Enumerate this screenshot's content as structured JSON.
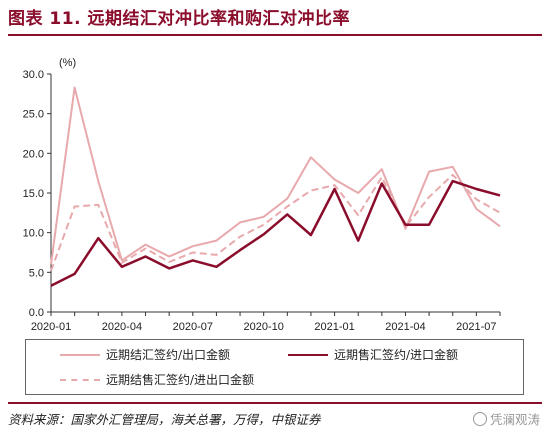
{
  "header": {
    "title": "图表 11. 远期结汇对冲比率和购汇对冲比率"
  },
  "chart_data": {
    "type": "line",
    "unit_label": "(%)",
    "ylim": [
      0,
      30
    ],
    "yticks": [
      "0.0",
      "5.0",
      "10.0",
      "15.0",
      "20.0",
      "25.0",
      "30.0"
    ],
    "xticks": [
      "2020-01",
      "2020-04",
      "2020-07",
      "2020-10",
      "2021-01",
      "2021-04",
      "2021-07"
    ],
    "x": [
      "2020-01",
      "2020-02",
      "2020-03",
      "2020-04",
      "2020-05",
      "2020-06",
      "2020-07",
      "2020-08",
      "2020-09",
      "2020-10",
      "2020-11",
      "2020-12",
      "2021-01",
      "2021-02",
      "2021-03",
      "2021-04",
      "2021-05",
      "2021-06",
      "2021-07",
      "2021-08"
    ],
    "series": [
      {
        "name": "远期结汇签约/出口金额",
        "color": "#e8a9ad",
        "style": "solid",
        "values": [
          6.0,
          28.3,
          16.5,
          6.5,
          8.5,
          7.0,
          8.3,
          9.0,
          11.3,
          12.0,
          14.3,
          19.5,
          16.7,
          15.0,
          18.0,
          10.5,
          17.7,
          18.3,
          13.0,
          10.8
        ]
      },
      {
        "name": "远期售汇签约/进口金额",
        "color": "#8b0d2c",
        "style": "solid",
        "values": [
          3.3,
          4.8,
          9.3,
          5.7,
          7.0,
          5.5,
          6.5,
          5.7,
          7.8,
          9.8,
          12.3,
          9.7,
          15.5,
          9.0,
          16.2,
          11.0,
          11.0,
          16.5,
          15.5,
          14.7
        ]
      },
      {
        "name": "远期结售汇签约/进出口金额",
        "color": "#e8a9ad",
        "style": "dashed",
        "values": [
          5.2,
          13.3,
          13.5,
          6.2,
          8.0,
          6.3,
          7.5,
          7.2,
          9.5,
          11.0,
          13.3,
          15.3,
          16.0,
          12.2,
          17.0,
          10.7,
          14.5,
          17.3,
          14.2,
          12.5
        ]
      }
    ],
    "legend_position": "bottom"
  },
  "source": {
    "text": "资料来源：国家外汇管理局，海关总署，万得，中银证券"
  },
  "watermark": {
    "text": "凭澜观涛"
  }
}
